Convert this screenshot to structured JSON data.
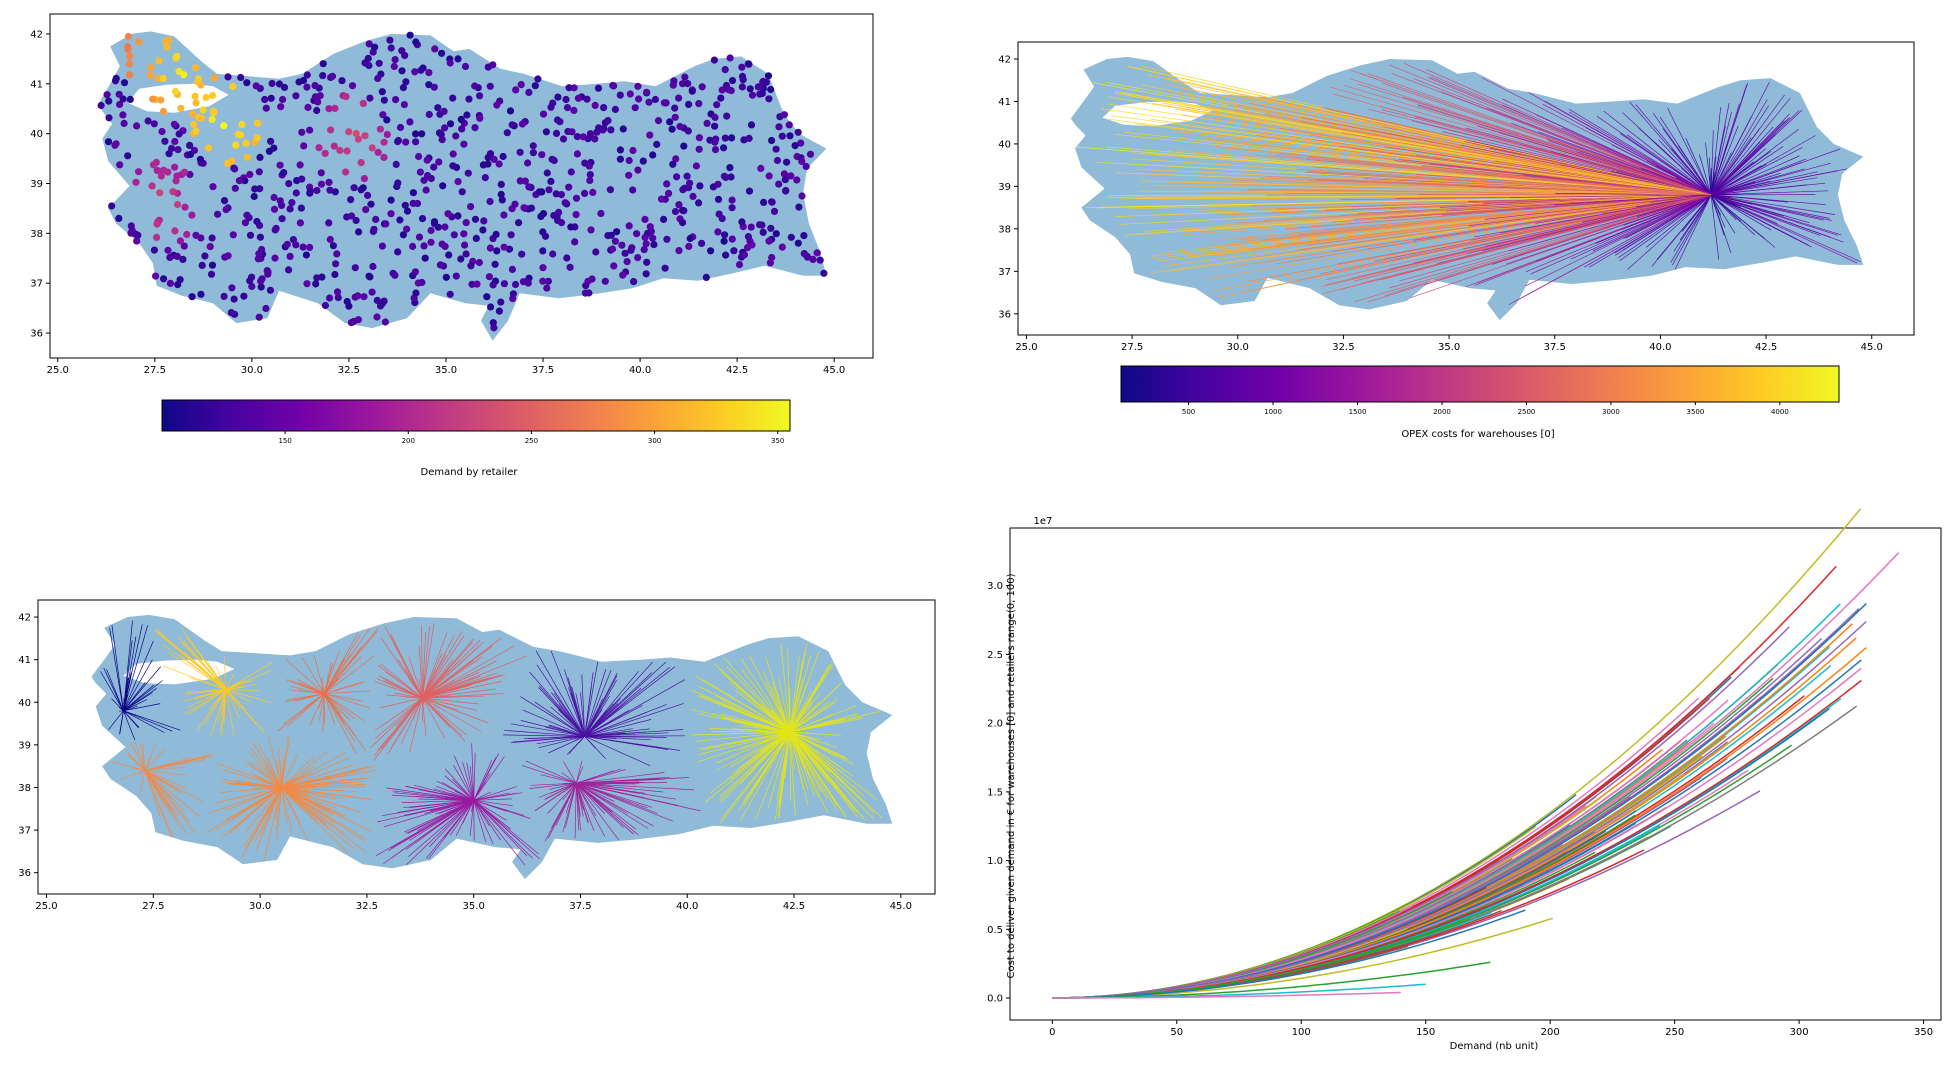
{
  "colors": {
    "land": "#8fbbd9",
    "axis": "#000000",
    "plasma_stops": [
      "#0d0887",
      "#46039f",
      "#7201a8",
      "#9c179e",
      "#bd3786",
      "#d8576b",
      "#ed7953",
      "#fb9f3a",
      "#fdca26",
      "#f0f921"
    ],
    "tab10": [
      "#1f77b4",
      "#ff7f0e",
      "#2ca02c",
      "#d62728",
      "#9467bd",
      "#8c564b",
      "#e377c2",
      "#7f7f7f",
      "#bcbd22",
      "#17becf"
    ]
  },
  "chart_data": [
    {
      "id": "demand_map",
      "type": "scatter",
      "title": "",
      "xlabel": "",
      "ylabel": "",
      "xlim": [
        24.8,
        46.0
      ],
      "ylim": [
        35.5,
        42.4
      ],
      "xticks": [
        "25.0",
        "27.5",
        "30.0",
        "32.5",
        "35.0",
        "37.5",
        "40.0",
        "42.5",
        "45.0"
      ],
      "yticks": [
        "36",
        "37",
        "38",
        "39",
        "40",
        "41",
        "42"
      ],
      "colorbar": {
        "label": "Demand by retailer",
        "range": [
          100,
          355
        ],
        "ticks": [
          "150",
          "200",
          "250",
          "300",
          "350"
        ],
        "colormap": "plasma"
      },
      "points_summary": "about 900 retailer points across Turkey; high demand clustered near Istanbul (around 27.5, 41.5) and Bursa (29.5, 40.3)",
      "high_demand_clusters": [
        {
          "lon": 27.6,
          "lat": 41.5,
          "demand": 300
        },
        {
          "lon": 28.2,
          "lat": 41.2,
          "demand": 330
        },
        {
          "lon": 29.3,
          "lat": 40.2,
          "demand": 340
        },
        {
          "lon": 32.6,
          "lat": 39.9,
          "demand": 220
        },
        {
          "lon": 27.7,
          "lat": 38.6,
          "demand": 215
        }
      ]
    },
    {
      "id": "opex_map",
      "type": "line",
      "title": "",
      "xlabel": "",
      "ylabel": "",
      "xlim": [
        24.8,
        46.0
      ],
      "ylim": [
        35.5,
        42.4
      ],
      "xticks": [
        "25.0",
        "27.5",
        "30.0",
        "32.5",
        "35.0",
        "37.5",
        "40.0",
        "42.5",
        "45.0"
      ],
      "yticks": [
        "36",
        "37",
        "38",
        "39",
        "40",
        "41",
        "42"
      ],
      "warehouse": {
        "lon": 41.2,
        "lat": 38.8
      },
      "colorbar": {
        "label": "OPEX costs for warehouses [0]",
        "range": [
          100,
          4350
        ],
        "ticks": [
          "500",
          "1000",
          "1500",
          "2000",
          "2500",
          "3000",
          "3500",
          "4000"
        ],
        "colormap": "plasma"
      }
    },
    {
      "id": "assignment_map",
      "type": "line",
      "title": "",
      "xlabel": "",
      "ylabel": "",
      "xlim": [
        24.8,
        45.8
      ],
      "ylim": [
        35.5,
        42.4
      ],
      "xticks": [
        "25.0",
        "27.5",
        "30.0",
        "32.5",
        "35.0",
        "37.5",
        "40.0",
        "42.5",
        "45.0"
      ],
      "yticks": [
        "36",
        "37",
        "38",
        "39",
        "40",
        "41",
        "42"
      ],
      "hubs": [
        {
          "lon": 26.8,
          "lat": 39.8,
          "color": "#0d0887"
        },
        {
          "lon": 29.2,
          "lat": 40.3,
          "color": "#fdca26"
        },
        {
          "lon": 31.5,
          "lat": 40.2,
          "color": "#e8704a"
        },
        {
          "lon": 33.8,
          "lat": 40.1,
          "color": "#e06060"
        },
        {
          "lon": 37.6,
          "lat": 39.2,
          "color": "#4a11a0"
        },
        {
          "lon": 42.4,
          "lat": 39.3,
          "color": "#e2e41c"
        },
        {
          "lon": 27.3,
          "lat": 38.4,
          "color": "#ee8b4c"
        },
        {
          "lon": 30.5,
          "lat": 38.0,
          "color": "#f08a45"
        },
        {
          "lon": 35.0,
          "lat": 37.7,
          "color": "#9a1aa0"
        },
        {
          "lon": 37.4,
          "lat": 38.1,
          "color": "#9e2398"
        }
      ]
    },
    {
      "id": "cost_curves",
      "type": "line",
      "title": "",
      "xlabel": "Demand (nb unit)",
      "ylabel": "Cost to deliver given demand in € for warehouses [0] and retailers range(0, 100)",
      "scale_label": "1e7",
      "xlim": [
        -17,
        357
      ],
      "ylim": [
        -0.16,
        3.42
      ],
      "xticks": [
        "0",
        "50",
        "100",
        "150",
        "200",
        "250",
        "300",
        "350"
      ],
      "yticks": [
        "0.0",
        "0.5",
        "1.0",
        "1.5",
        "2.0",
        "2.5",
        "3.0"
      ],
      "y_units": "1e7 €",
      "series_summary": "100 quadratic cost curves starting at 0, ending between demand 135 and 340",
      "series": [
        {
          "end_x": 340,
          "end_y": 3.24,
          "color": "#e377c2"
        },
        {
          "end_x": 296,
          "end_y": 2.7,
          "color": "#9467bd"
        },
        {
          "end_x": 327,
          "end_y": 2.87,
          "color": "#1f77b4"
        },
        {
          "end_x": 327,
          "end_y": 2.74,
          "color": "#9467bd"
        },
        {
          "end_x": 327,
          "end_y": 2.55,
          "color": "#ff7f0e"
        },
        {
          "end_x": 325,
          "end_y": 2.46,
          "color": "#1f77b4"
        },
        {
          "end_x": 325,
          "end_y": 2.4,
          "color": "#e377c2"
        },
        {
          "end_x": 325,
          "end_y": 2.31,
          "color": "#d62728"
        },
        {
          "end_x": 297,
          "end_y": 1.84,
          "color": "#2ca02c"
        },
        {
          "end_x": 201,
          "end_y": 0.58,
          "color": "#bcbd22"
        },
        {
          "end_x": 190,
          "end_y": 0.64,
          "color": "#1f77b4"
        },
        {
          "end_x": 176,
          "end_y": 0.26,
          "color": "#2ca02c"
        },
        {
          "end_x": 150,
          "end_y": 0.1,
          "color": "#17becf"
        },
        {
          "end_x": 140,
          "end_y": 0.04,
          "color": "#e377c2"
        }
      ]
    }
  ]
}
